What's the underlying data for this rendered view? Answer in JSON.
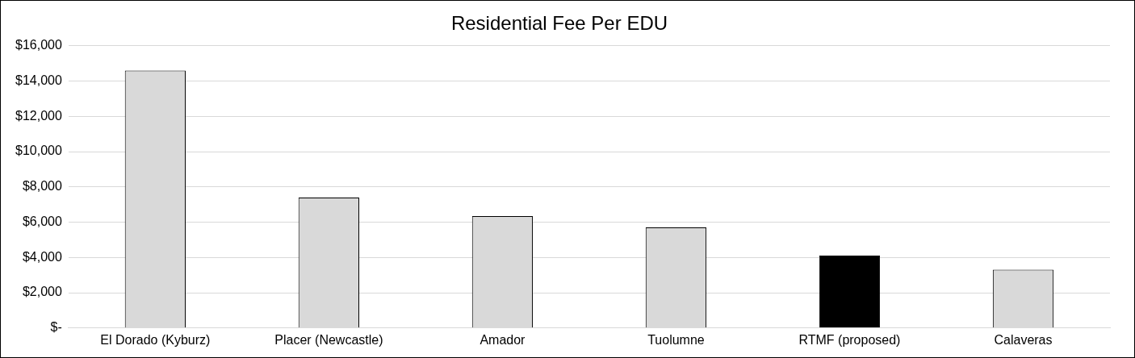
{
  "chart_data": {
    "type": "bar",
    "title": "Residential Fee Per EDU",
    "categories": [
      "El Dorado (Kyburz)",
      "Placer (Newcastle)",
      "Amador",
      "Tuolumne",
      "RTMF (proposed)",
      "Calaveras"
    ],
    "values": [
      14600,
      7400,
      6350,
      5700,
      4100,
      3300
    ],
    "colors": [
      "#d9d9d9",
      "#d9d9d9",
      "#d9d9d9",
      "#d9d9d9",
      "#000000",
      "#d9d9d9"
    ],
    "ylim": [
      0,
      16000
    ],
    "yticks": [
      {
        "value": 0,
        "label": "$-"
      },
      {
        "value": 2000,
        "label": "$2,000"
      },
      {
        "value": 4000,
        "label": "$4,000"
      },
      {
        "value": 6000,
        "label": "$6,000"
      },
      {
        "value": 8000,
        "label": "$8,000"
      },
      {
        "value": 10000,
        "label": "$10,000"
      },
      {
        "value": 12000,
        "label": "$12,000"
      },
      {
        "value": 14000,
        "label": "$14,000"
      },
      {
        "value": 16000,
        "label": "$16,000"
      }
    ],
    "grid": "y",
    "legend": false
  }
}
